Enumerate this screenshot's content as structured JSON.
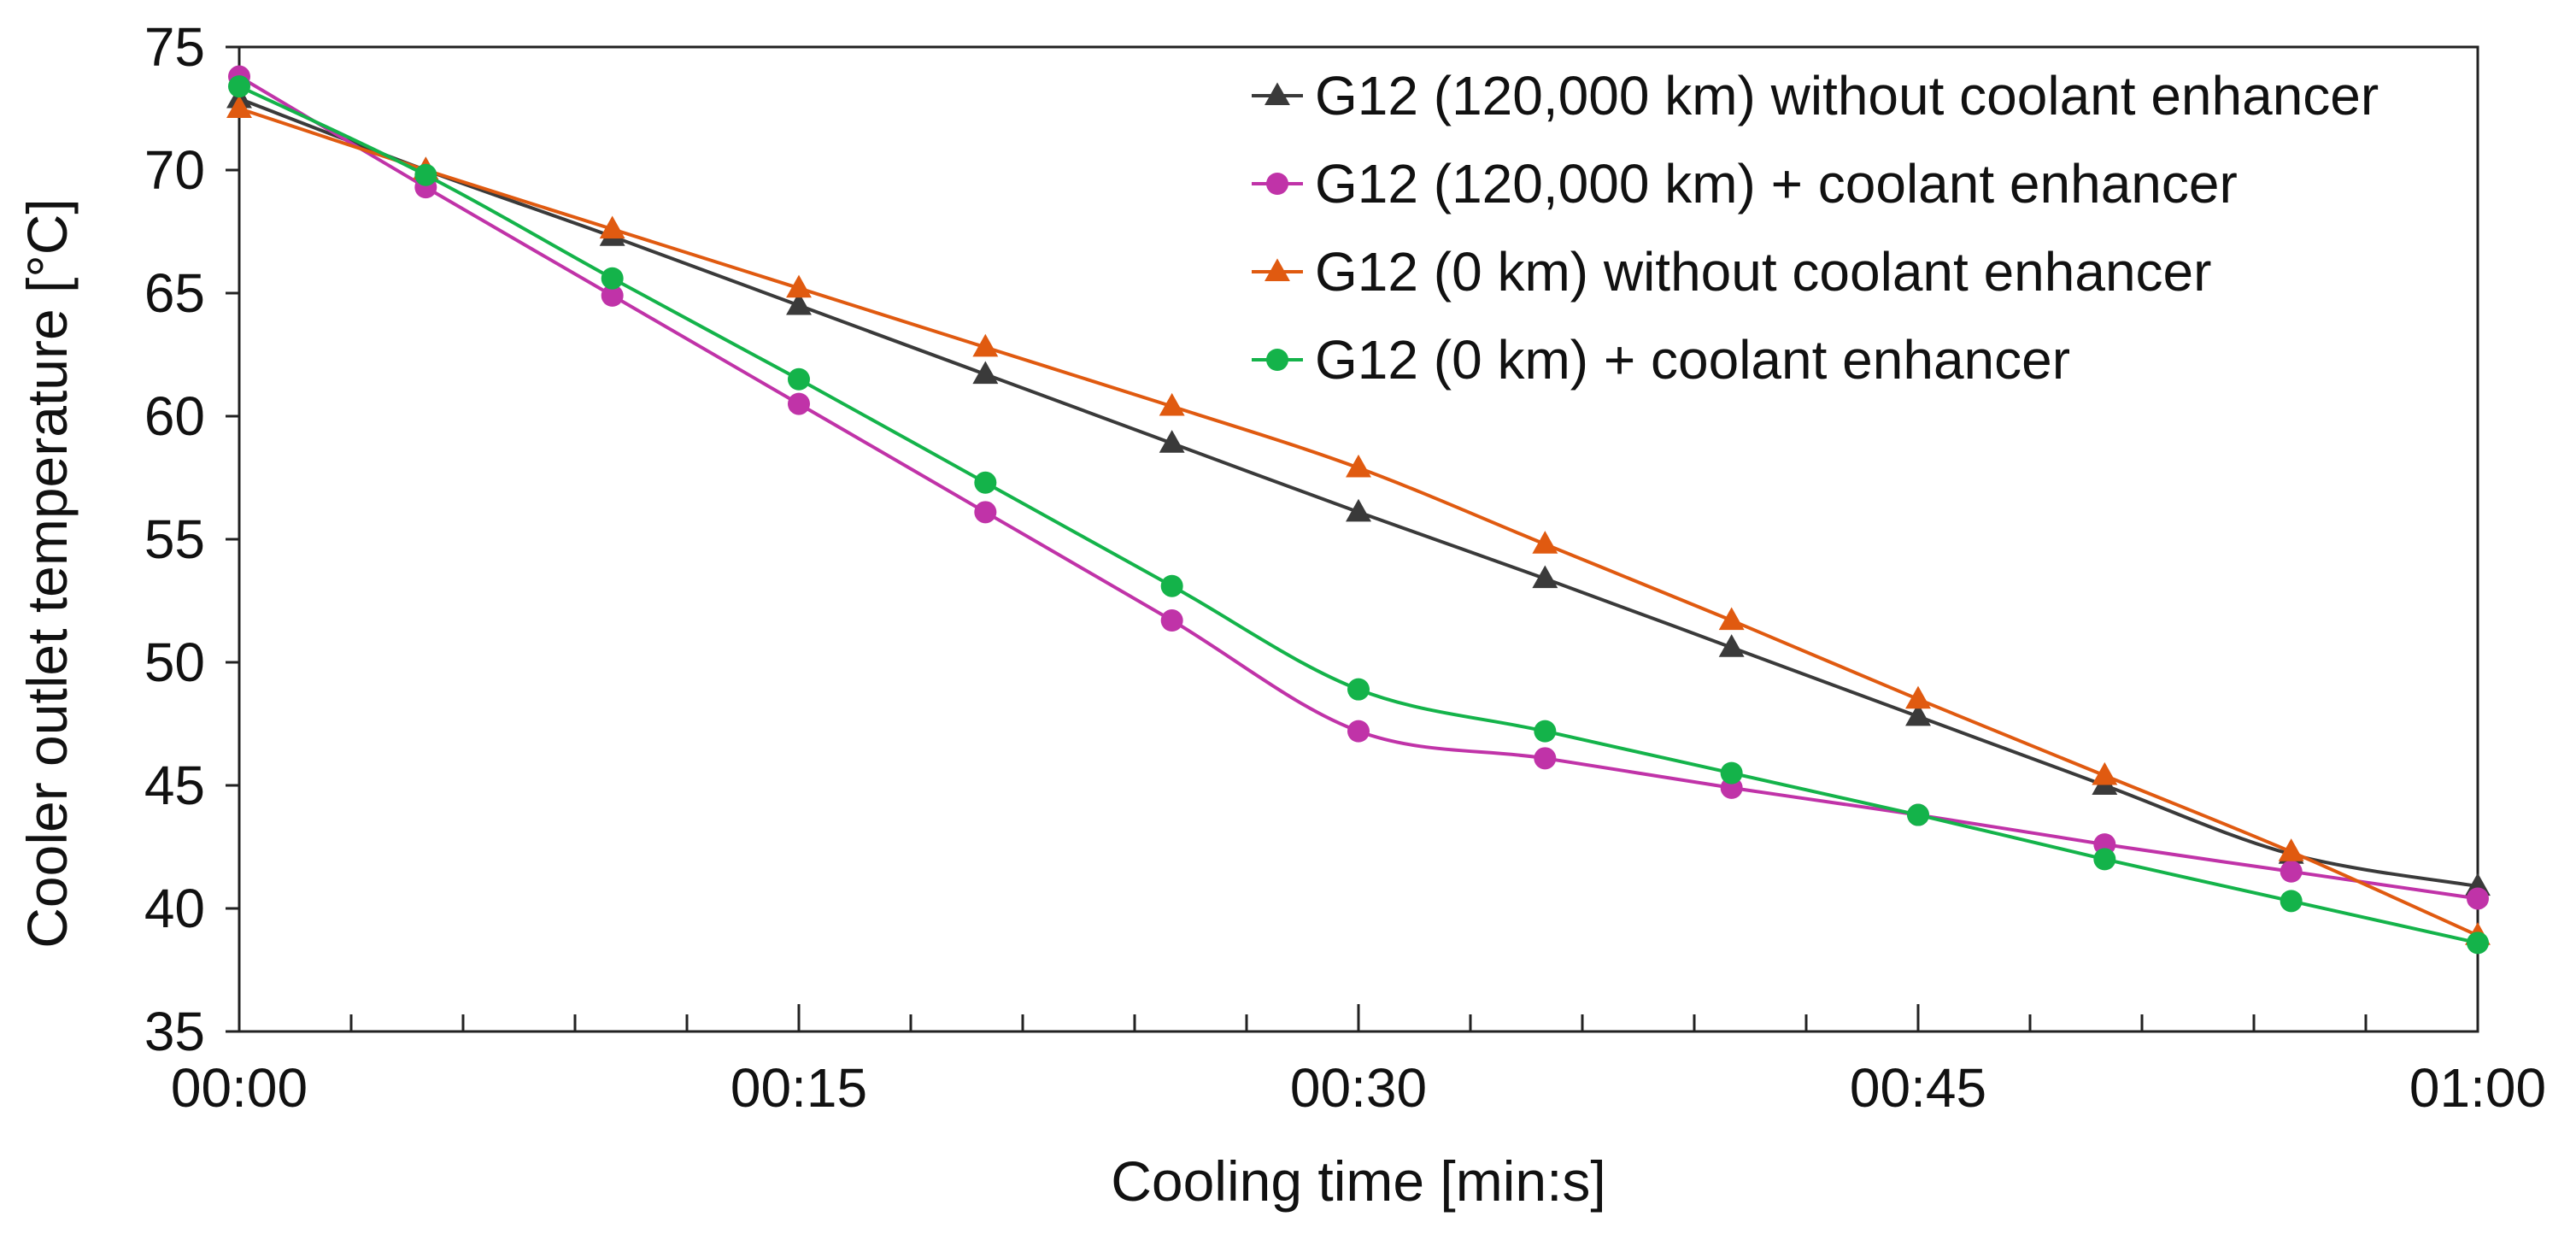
{
  "chart_data": {
    "type": "line",
    "title": "",
    "xlabel": "Cooling time [min:s]",
    "ylabel": "Cooler outlet temperature [°C]",
    "x_seconds": [
      0,
      5,
      10,
      15,
      20,
      25,
      30,
      35,
      40,
      45,
      50,
      55,
      60
    ],
    "xlim": [
      0,
      60
    ],
    "ylim": [
      35,
      75
    ],
    "x_ticks": [
      {
        "value": 0,
        "label": "00:00"
      },
      {
        "value": 15,
        "label": "00:15"
      },
      {
        "value": 30,
        "label": "00:30"
      },
      {
        "value": 45,
        "label": "00:45"
      },
      {
        "value": 60,
        "label": "01:00"
      }
    ],
    "x_minor_step": 3,
    "y_ticks": [
      {
        "value": 35,
        "label": "35"
      },
      {
        "value": 40,
        "label": "40"
      },
      {
        "value": 45,
        "label": "45"
      },
      {
        "value": 50,
        "label": "50"
      },
      {
        "value": 55,
        "label": "55"
      },
      {
        "value": 60,
        "label": "60"
      },
      {
        "value": 65,
        "label": "65"
      },
      {
        "value": 70,
        "label": "70"
      },
      {
        "value": 75,
        "label": "75"
      }
    ],
    "grid": false,
    "legend_position": "top-right",
    "series": [
      {
        "id": "g12-120k-no-enhancer",
        "name": "G12 (120,000 km) without coolant enhancer",
        "color": "#3a3a3a",
        "marker": "triangle",
        "values": [
          72.9,
          70.0,
          67.3,
          64.5,
          61.7,
          58.9,
          56.1,
          53.4,
          50.6,
          47.8,
          45.0,
          42.2,
          40.9
        ]
      },
      {
        "id": "g12-120k-enhancer",
        "name": "G12 (120,000 km) + coolant enhancer",
        "color": "#c033a8",
        "marker": "circle",
        "values": [
          73.8,
          69.3,
          64.9,
          60.5,
          56.1,
          51.7,
          47.2,
          46.1,
          44.9,
          43.8,
          42.6,
          41.5,
          40.4
        ]
      },
      {
        "id": "g12-0k-no-enhancer",
        "name": "G12 (0 km) without coolant enhancer",
        "color": "#e05a10",
        "marker": "triangle",
        "values": [
          72.5,
          70.0,
          67.6,
          65.2,
          62.8,
          60.4,
          57.9,
          54.8,
          51.7,
          48.5,
          45.4,
          42.3,
          38.9
        ]
      },
      {
        "id": "g12-0k-enhancer",
        "name": "G12 (0 km) + coolant enhancer",
        "color": "#14b34a",
        "marker": "circle",
        "values": [
          73.4,
          69.8,
          65.6,
          61.5,
          57.3,
          53.1,
          48.9,
          47.2,
          45.5,
          43.8,
          42.0,
          40.3,
          38.6
        ]
      }
    ]
  }
}
